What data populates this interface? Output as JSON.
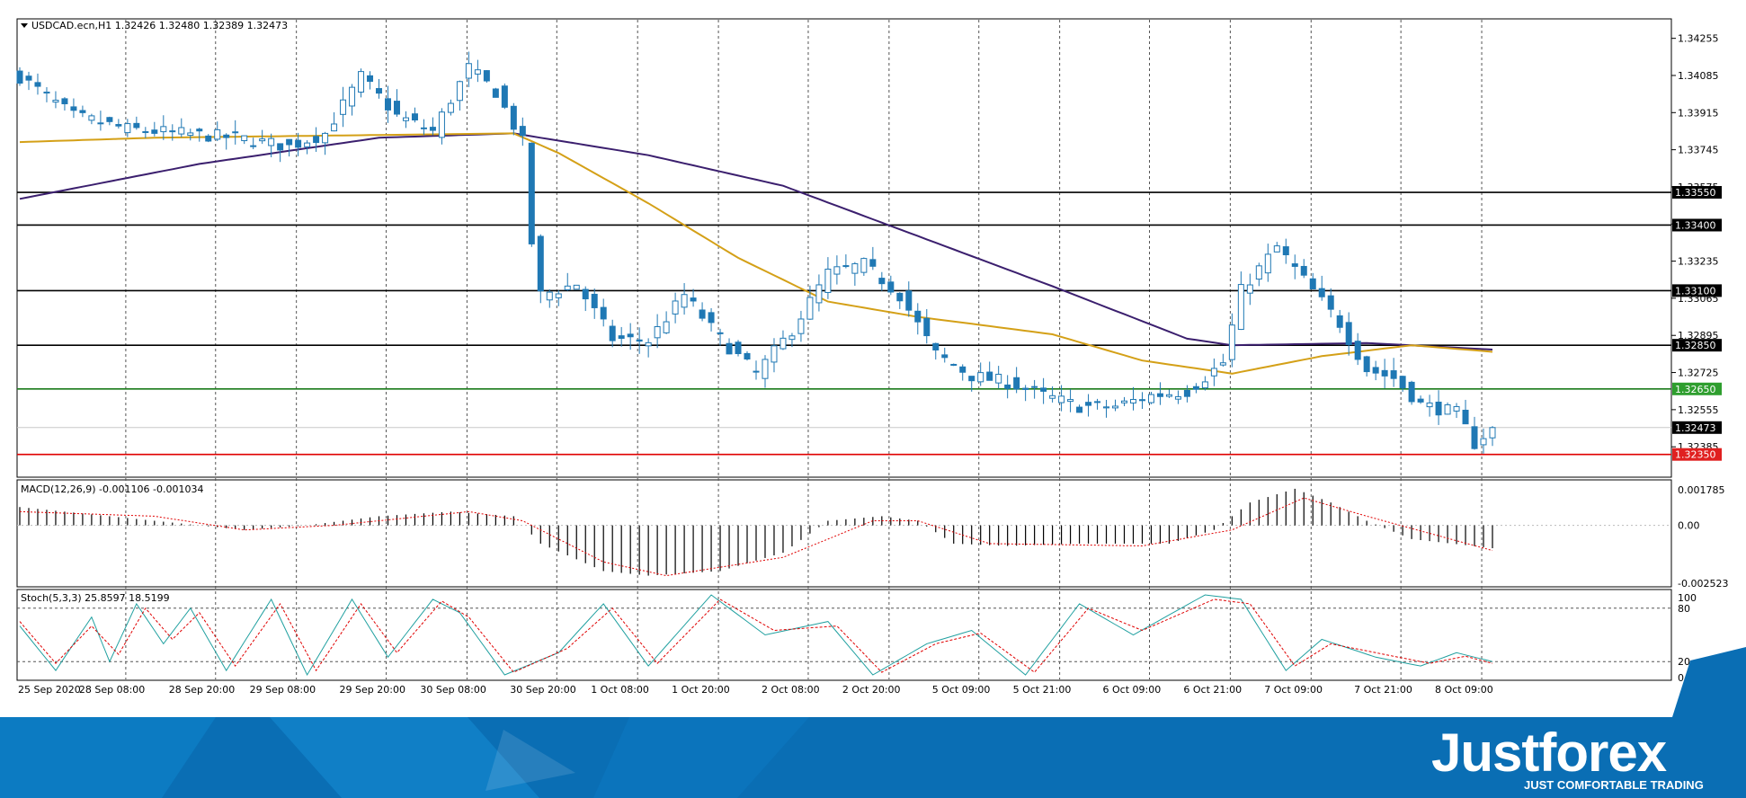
{
  "header": {
    "symbol_line": "USDCAD.ecn,H1  1.32426 1.32480 1.32389 1.32473",
    "macd_label": "MACD(12,26,9) -0.001106 -0.001034",
    "stoch_label": "Stoch(5,3,3) 25.8597 18.5199"
  },
  "colors": {
    "bull": "#ffffff",
    "bear": "#1f78b4",
    "candle_outline": "#1f78b4",
    "ma_fast": "#d4a017",
    "ma_slow": "#3b1f6e",
    "resistance": "#000000",
    "support_green": "#1a7a1a",
    "support_red": "#e00000",
    "price_tag_green": "#2e9e2e",
    "price_tag_red": "#e02020",
    "stoch_main": "#20a0a0",
    "stoch_signal": "#e00000",
    "macd_signal": "#e00000",
    "brand_bg": "#0a6eb4"
  },
  "chart_data": [
    {
      "type": "candlestick",
      "pane": "price",
      "symbol": "USDCAD.ecn",
      "timeframe": "H1",
      "ylim": [
        1.3225,
        1.3434
      ],
      "y_ticks": [
        "1.34255",
        "1.34085",
        "1.33915",
        "1.33745",
        "1.33575",
        "1.33405",
        "1.33235",
        "1.33065",
        "1.32895",
        "1.32725",
        "1.32555",
        "1.32385"
      ],
      "x_tick_labels": [
        "25 Sep 2020",
        "28 Sep 08:00",
        "28 Sep 20:00",
        "29 Sep 08:00",
        "29 Sep 20:00",
        "30 Sep 08:00",
        "30 Sep 20:00",
        "1 Oct 08:00",
        "1 Oct 20:00",
        "2 Oct 08:00",
        "2 Oct 20:00",
        "5 Oct 09:00",
        "5 Oct 21:00",
        "6 Oct 09:00",
        "6 Oct 21:00",
        "7 Oct 09:00",
        "7 Oct 21:00",
        "8 Oct 09:00"
      ],
      "bar_count": 165,
      "close_anchors": [
        [
          0,
          1.3408
        ],
        [
          6,
          1.339
        ],
        [
          12,
          1.3384
        ],
        [
          18,
          1.3382
        ],
        [
          24,
          1.338
        ],
        [
          30,
          1.3376
        ],
        [
          34,
          1.3382
        ],
        [
          38,
          1.3408
        ],
        [
          42,
          1.339
        ],
        [
          46,
          1.3383
        ],
        [
          50,
          1.3412
        ],
        [
          53,
          1.3401
        ],
        [
          56,
          1.3378
        ],
        [
          57,
          1.3332
        ],
        [
          58,
          1.3308
        ],
        [
          62,
          1.3313
        ],
        [
          66,
          1.3288
        ],
        [
          70,
          1.3287
        ],
        [
          74,
          1.3308
        ],
        [
          78,
          1.3288
        ],
        [
          82,
          1.3272
        ],
        [
          86,
          1.3292
        ],
        [
          90,
          1.3318
        ],
        [
          94,
          1.3322
        ],
        [
          98,
          1.3308
        ],
        [
          102,
          1.3281
        ],
        [
          106,
          1.3271
        ],
        [
          110,
          1.3268
        ],
        [
          114,
          1.3262
        ],
        [
          118,
          1.3257
        ],
        [
          122,
          1.3257
        ],
        [
          126,
          1.3262
        ],
        [
          130,
          1.3264
        ],
        [
          134,
          1.3277
        ],
        [
          136,
          1.331
        ],
        [
          140,
          1.333
        ],
        [
          143,
          1.3315
        ],
        [
          147,
          1.3295
        ],
        [
          150,
          1.3274
        ],
        [
          153,
          1.327
        ],
        [
          156,
          1.3258
        ],
        [
          160,
          1.3254
        ],
        [
          162,
          1.324
        ],
        [
          164,
          1.3247
        ]
      ],
      "last_bar": {
        "open": 1.32426,
        "high": 1.3248,
        "low": 1.32389,
        "close": 1.32473
      },
      "horizontal_levels": [
        {
          "price": 1.3355,
          "label": "1.33550",
          "style": "resistance"
        },
        {
          "price": 1.334,
          "label": "1.33400",
          "style": "resistance"
        },
        {
          "price": 1.331,
          "label": "1.33100",
          "style": "resistance"
        },
        {
          "price": 1.3285,
          "label": "1.32850",
          "style": "resistance"
        },
        {
          "price": 1.3265,
          "label": "1.32650",
          "style": "support_green"
        },
        {
          "price": 1.32473,
          "label": "1.32473",
          "style": "current"
        },
        {
          "price": 1.3235,
          "label": "1.32350",
          "style": "support_red"
        }
      ],
      "moving_averages": [
        {
          "color_key": "ma_slow",
          "anchors": [
            [
              0,
              1.3352
            ],
            [
              20,
              1.3368
            ],
            [
              40,
              1.338
            ],
            [
              55,
              1.3382
            ],
            [
              70,
              1.3372
            ],
            [
              85,
              1.3358
            ],
            [
              100,
              1.3335
            ],
            [
              115,
              1.3312
            ],
            [
              130,
              1.3288
            ],
            [
              135,
              1.3285
            ],
            [
              150,
              1.3286
            ],
            [
              164,
              1.3283
            ]
          ]
        },
        {
          "color_key": "ma_fast",
          "anchors": [
            [
              0,
              1.3378
            ],
            [
              15,
              1.338
            ],
            [
              35,
              1.3381
            ],
            [
              55,
              1.3382
            ],
            [
              60,
              1.3373
            ],
            [
              70,
              1.335
            ],
            [
              80,
              1.3325
            ],
            [
              90,
              1.3305
            ],
            [
              100,
              1.3298
            ],
            [
              115,
              1.329
            ],
            [
              125,
              1.3278
            ],
            [
              135,
              1.3272
            ],
            [
              145,
              1.328
            ],
            [
              155,
              1.3285
            ],
            [
              164,
              1.3282
            ]
          ]
        }
      ]
    },
    {
      "type": "histogram",
      "pane": "macd",
      "ylim": [
        -0.00265,
        0.00195
      ],
      "y_ticks": [
        "0.001785",
        "0.00",
        "-0.002523"
      ],
      "histogram_anchors": [
        [
          0,
          0.0008
        ],
        [
          10,
          0.0004
        ],
        [
          20,
          0.0
        ],
        [
          25,
          -0.0002
        ],
        [
          32,
          0.0
        ],
        [
          40,
          0.0004
        ],
        [
          48,
          0.0006
        ],
        [
          55,
          0.0004
        ],
        [
          58,
          -0.0008
        ],
        [
          65,
          -0.002
        ],
        [
          70,
          -0.0022
        ],
        [
          78,
          -0.002
        ],
        [
          85,
          -0.0012
        ],
        [
          90,
          0.0002
        ],
        [
          96,
          0.0004
        ],
        [
          100,
          0.0002
        ],
        [
          104,
          -0.0008
        ],
        [
          110,
          -0.0009
        ],
        [
          118,
          -0.0008
        ],
        [
          128,
          -0.0008
        ],
        [
          133,
          -0.0002
        ],
        [
          137,
          0.001
        ],
        [
          142,
          0.0016
        ],
        [
          146,
          0.001
        ],
        [
          150,
          0.0002
        ],
        [
          155,
          -0.0006
        ],
        [
          164,
          -0.001
        ]
      ],
      "signal_anchors": [
        [
          0,
          0.0006
        ],
        [
          15,
          0.0004
        ],
        [
          25,
          -0.0002
        ],
        [
          35,
          0.0
        ],
        [
          50,
          0.0006
        ],
        [
          56,
          0.0002
        ],
        [
          65,
          -0.0016
        ],
        [
          72,
          -0.0022
        ],
        [
          85,
          -0.0014
        ],
        [
          95,
          0.0002
        ],
        [
          100,
          0.0002
        ],
        [
          108,
          -0.0008
        ],
        [
          125,
          -0.0009
        ],
        [
          135,
          -0.0002
        ],
        [
          143,
          0.0012
        ],
        [
          150,
          0.0004
        ],
        [
          164,
          -0.0011
        ]
      ]
    },
    {
      "type": "line",
      "pane": "stochastic",
      "ylim": [
        0,
        100
      ],
      "y_ticks": [
        "100",
        "80",
        "20",
        "0"
      ],
      "series": [
        {
          "color_key": "stoch_main",
          "anchors": [
            [
              0,
              60
            ],
            [
              4,
              10
            ],
            [
              8,
              70
            ],
            [
              10,
              20
            ],
            [
              13,
              85
            ],
            [
              16,
              40
            ],
            [
              19,
              80
            ],
            [
              23,
              10
            ],
            [
              28,
              90
            ],
            [
              32,
              5
            ],
            [
              37,
              90
            ],
            [
              41,
              25
            ],
            [
              46,
              90
            ],
            [
              49,
              75
            ],
            [
              54,
              5
            ],
            [
              60,
              30
            ],
            [
              65,
              85
            ],
            [
              70,
              15
            ],
            [
              77,
              95
            ],
            [
              83,
              50
            ],
            [
              90,
              65
            ],
            [
              95,
              5
            ],
            [
              101,
              40
            ],
            [
              106,
              55
            ],
            [
              112,
              5
            ],
            [
              118,
              85
            ],
            [
              124,
              50
            ],
            [
              132,
              95
            ],
            [
              136,
              90
            ],
            [
              141,
              10
            ],
            [
              145,
              45
            ],
            [
              151,
              25
            ],
            [
              156,
              15
            ],
            [
              160,
              30
            ],
            [
              164,
              20
            ]
          ]
        },
        {
          "color_key": "stoch_signal",
          "anchors": [
            [
              0,
              65
            ],
            [
              4,
              18
            ],
            [
              8,
              60
            ],
            [
              11,
              28
            ],
            [
              14,
              80
            ],
            [
              17,
              45
            ],
            [
              20,
              75
            ],
            [
              24,
              15
            ],
            [
              29,
              85
            ],
            [
              33,
              10
            ],
            [
              38,
              85
            ],
            [
              42,
              30
            ],
            [
              47,
              88
            ],
            [
              50,
              70
            ],
            [
              55,
              8
            ],
            [
              61,
              35
            ],
            [
              66,
              80
            ],
            [
              71,
              18
            ],
            [
              78,
              90
            ],
            [
              84,
              55
            ],
            [
              91,
              60
            ],
            [
              96,
              8
            ],
            [
              102,
              40
            ],
            [
              107,
              52
            ],
            [
              113,
              8
            ],
            [
              119,
              80
            ],
            [
              125,
              55
            ],
            [
              133,
              90
            ],
            [
              137,
              85
            ],
            [
              142,
              15
            ],
            [
              146,
              40
            ],
            [
              152,
              28
            ],
            [
              157,
              18
            ],
            [
              161,
              26
            ],
            [
              164,
              18
            ]
          ]
        }
      ]
    }
  ],
  "footer": {
    "brand": "Justforex",
    "tagline": "JUST COMFORTABLE TRADING"
  }
}
